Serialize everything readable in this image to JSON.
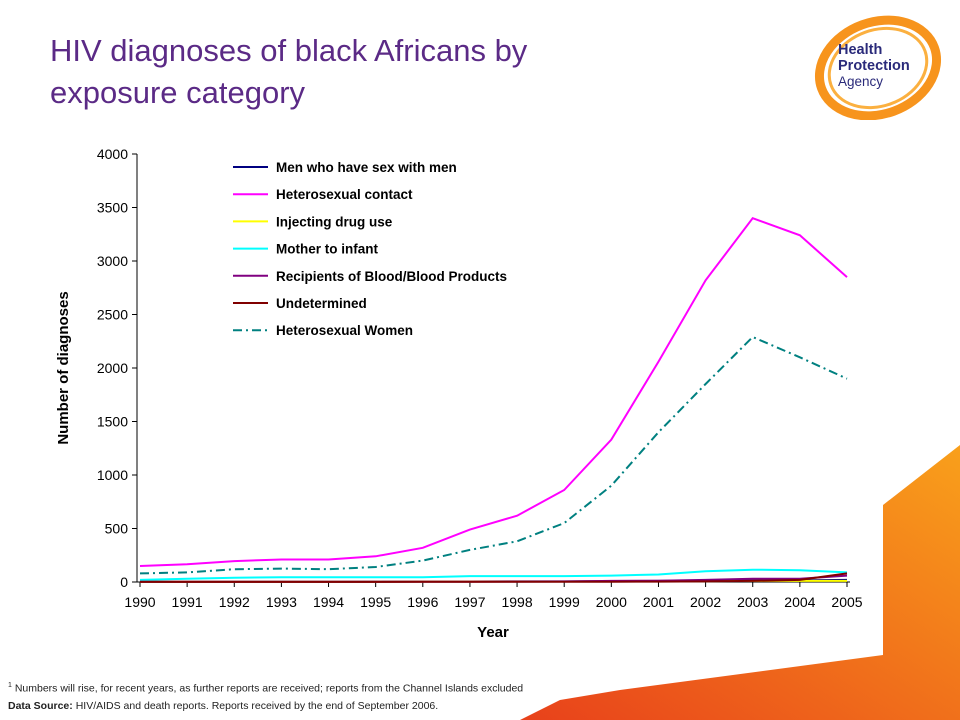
{
  "slide": {
    "title_line1": "HIV diagnoses of black Africans by",
    "title_line2": "exposure category"
  },
  "logo": {
    "line1": "Health",
    "line2": "Protection",
    "line3": "Agency",
    "colors": {
      "ring": "#f7941d",
      "text": "#2a2a7a"
    }
  },
  "footer": {
    "footnote_mark": "1",
    "footnote_text": "Numbers will rise, for recent years, as further reports are received; reports from the Channel Islands excluded",
    "source_label": "Data Source:",
    "source_text": "HIV/AIDS and death reports. Reports received by the end of September 2006."
  },
  "colors": {
    "title": "#5b2a86",
    "accent_orange": "#f7941d"
  },
  "chart_data": {
    "type": "line",
    "xlabel": "Year",
    "ylabel": "Number of diagnoses",
    "ylim": [
      0,
      4000
    ],
    "yticks": [
      "0",
      "500",
      "1000",
      "1500",
      "2000",
      "2500",
      "3000",
      "3500",
      "4000"
    ],
    "x": [
      "1990",
      "1991",
      "1992",
      "1993",
      "1994",
      "1995",
      "1996",
      "1997",
      "1998",
      "1999",
      "2000",
      "2001",
      "2002",
      "2003",
      "2004",
      "2005"
    ],
    "legend_position": "top-left",
    "grid": false,
    "series": [
      {
        "name": "Men who have sex with men",
        "color": "#000080",
        "dash": "solid",
        "values": [
          2,
          3,
          3,
          3,
          3,
          4,
          5,
          5,
          6,
          6,
          8,
          10,
          12,
          15,
          15,
          20
        ]
      },
      {
        "name": "Heterosexual contact",
        "color": "#ff00ff",
        "dash": "solid",
        "values": [
          150,
          165,
          195,
          210,
          210,
          240,
          320,
          490,
          620,
          860,
          1330,
          2060,
          2820,
          3400,
          3240,
          2850
        ]
      },
      {
        "name": "Injecting drug use",
        "color": "#ffff00",
        "dash": "solid",
        "values": [
          3,
          3,
          3,
          3,
          3,
          3,
          4,
          4,
          5,
          5,
          6,
          7,
          8,
          10,
          10,
          10
        ]
      },
      {
        "name": "Mother to infant",
        "color": "#00ffff",
        "dash": "solid",
        "values": [
          20,
          30,
          40,
          45,
          45,
          45,
          45,
          55,
          55,
          55,
          60,
          70,
          100,
          115,
          110,
          90
        ]
      },
      {
        "name": "Recipients of Blood/Blood Products",
        "color": "#800080",
        "dash": "solid",
        "values": [
          2,
          2,
          2,
          2,
          2,
          3,
          3,
          3,
          4,
          5,
          10,
          12,
          20,
          30,
          30,
          60
        ]
      },
      {
        "name": "Undetermined",
        "color": "#800000",
        "dash": "solid",
        "values": [
          1,
          1,
          1,
          1,
          1,
          1,
          2,
          2,
          2,
          2,
          3,
          4,
          6,
          10,
          20,
          80
        ]
      },
      {
        "name": "Heterosexual Women",
        "color": "#008080",
        "dash": "dashdot",
        "values": [
          80,
          90,
          120,
          125,
          120,
          140,
          200,
          300,
          380,
          550,
          900,
          1400,
          1850,
          2290,
          2100,
          1900
        ]
      }
    ]
  }
}
